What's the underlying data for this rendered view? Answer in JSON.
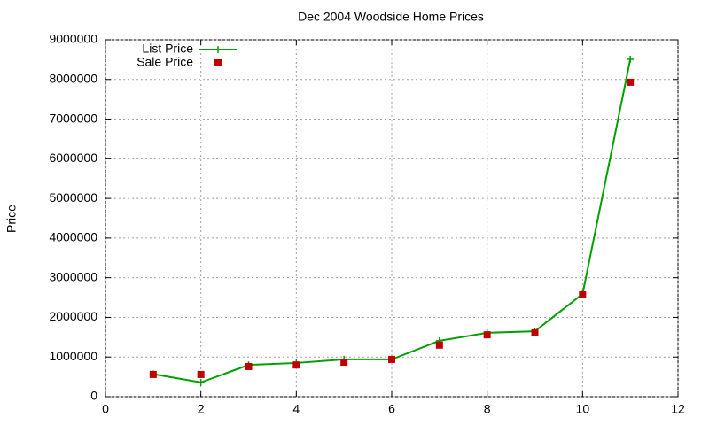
{
  "chart_data": {
    "type": "line",
    "title": "Dec 2004 Woodside Home Prices",
    "y_label": "Price",
    "x": [
      1,
      2,
      3,
      4,
      5,
      6,
      7,
      8,
      9,
      10,
      11
    ],
    "series": [
      {
        "name": "List Price",
        "color": "#00a000",
        "line": true,
        "marker": "plus",
        "values": [
          570000,
          360000,
          800000,
          850000,
          940000,
          940000,
          1410000,
          1610000,
          1650000,
          2590000,
          8510000
        ]
      },
      {
        "name": "Sale Price",
        "color": "#c00000",
        "line": false,
        "marker": "square",
        "values": [
          560000,
          560000,
          760000,
          800000,
          870000,
          940000,
          1300000,
          1560000,
          1610000,
          2570000,
          7930000
        ]
      }
    ],
    "xlim": [
      0,
      12
    ],
    "xticks": [
      0,
      2,
      4,
      6,
      8,
      10,
      12
    ],
    "ylim": [
      0,
      9000000
    ],
    "yticks": [
      0,
      1000000,
      2000000,
      3000000,
      4000000,
      5000000,
      6000000,
      7000000,
      8000000,
      9000000
    ],
    "grid": true,
    "legend": "top-left"
  }
}
